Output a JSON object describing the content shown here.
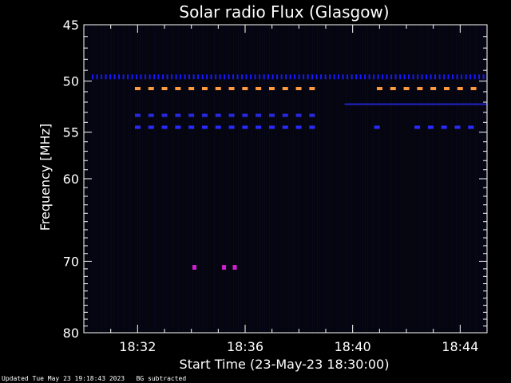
{
  "chart_data": {
    "type": "heatmap",
    "title": "Solar radio Flux (Glasgow)",
    "xlabel": "Start Time (23-May-23 18:30:00)",
    "ylabel": "Frequency [MHz]",
    "x_range_minutes": [
      0,
      15
    ],
    "xticks": [
      {
        "minute": 2,
        "label": "18:32"
      },
      {
        "minute": 6,
        "label": "18:36"
      },
      {
        "minute": 10,
        "label": "18:40"
      },
      {
        "minute": 14,
        "label": "18:44"
      }
    ],
    "y_scale": "log",
    "y_range_mhz": [
      45,
      80
    ],
    "yticks": [
      45,
      50,
      55,
      60,
      70,
      80
    ],
    "background_color": "#05050f",
    "interference_bands": [
      {
        "freq_mhz": 49.6,
        "start_min": 0.3,
        "end_min": 15,
        "color": "#1818ff",
        "style": "dashed-dense"
      },
      {
        "freq_mhz": 50.7,
        "start_min": 1.9,
        "end_min": 8.7,
        "color": "#ff9a40",
        "style": "dashed"
      },
      {
        "freq_mhz": 50.7,
        "start_min": 10.9,
        "end_min": 14.6,
        "color": "#ff9a40",
        "style": "dashed"
      },
      {
        "freq_mhz": 52.2,
        "start_min": 9.7,
        "end_min": 15,
        "color": "#2222cc",
        "style": "solid"
      },
      {
        "freq_mhz": 53.3,
        "start_min": 1.9,
        "end_min": 8.7,
        "color": "#2828e0",
        "style": "dashed"
      },
      {
        "freq_mhz": 54.5,
        "start_min": 1.9,
        "end_min": 8.7,
        "color": "#2a2aff",
        "style": "dashed"
      },
      {
        "freq_mhz": 54.5,
        "start_min": 10.8,
        "end_min": 11.0,
        "color": "#2a2aff",
        "style": "dashed"
      },
      {
        "freq_mhz": 54.5,
        "start_min": 12.3,
        "end_min": 14.6,
        "color": "#2a2aff",
        "style": "dashed"
      }
    ],
    "bursts": [
      {
        "freq_mhz": 70.8,
        "minute": 4.1,
        "color": "#d020d0"
      },
      {
        "freq_mhz": 70.8,
        "minute": 5.2,
        "color": "#d020d0"
      },
      {
        "freq_mhz": 70.8,
        "minute": 5.6,
        "color": "#d020d0"
      }
    ]
  },
  "footer": {
    "updated": "Updated Tue May 23 19:18:43 2023",
    "note": "BG subtracted"
  }
}
